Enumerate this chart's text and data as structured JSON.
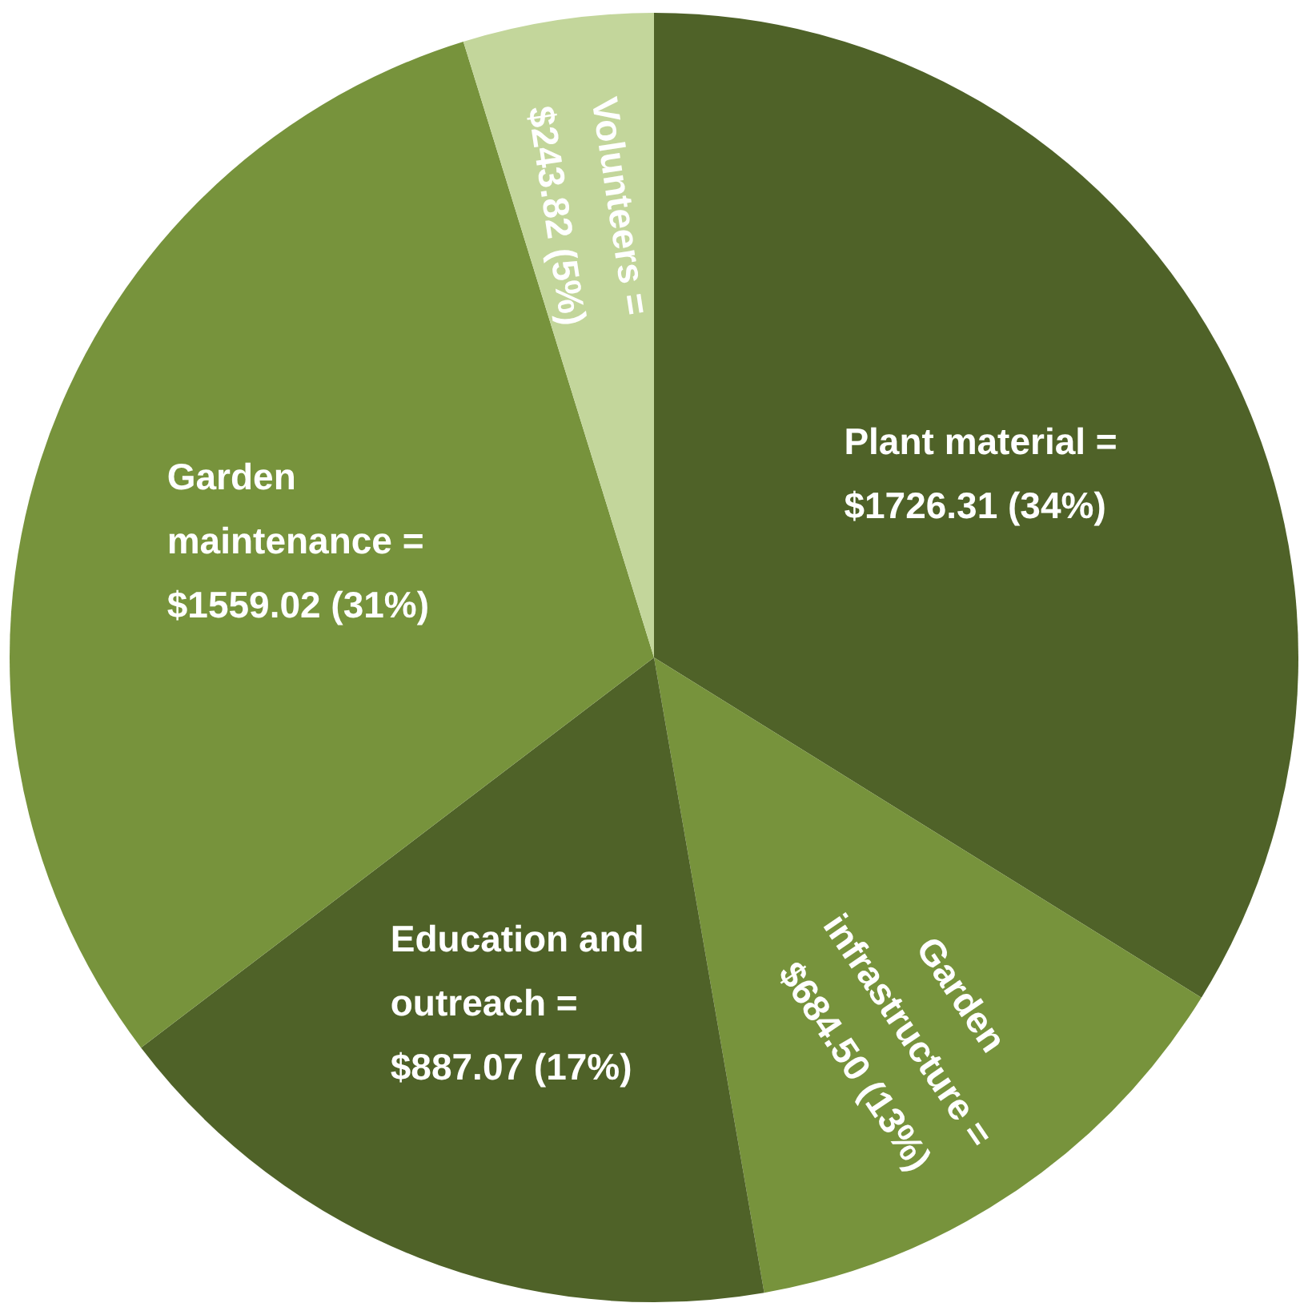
{
  "chart_data": {
    "type": "pie",
    "categories": [
      "Plant material =",
      "Garden infrastructure =",
      "Education and outreach =",
      "Garden maintenance =",
      "Volunteers ="
    ],
    "values": [
      1726.31,
      684.5,
      887.07,
      1559.02,
      243.82
    ],
    "colors": [
      "#4f6228",
      "#77933c",
      "#4f6228",
      "#77933c",
      "#c3d69b"
    ],
    "value_labels": [
      "$1726.31 (34%)",
      "$684.50 (13%)",
      "$887.07 (17%)",
      "$1559.02 (31%)",
      "$243.82 (5%)"
    ],
    "legend": false
  }
}
